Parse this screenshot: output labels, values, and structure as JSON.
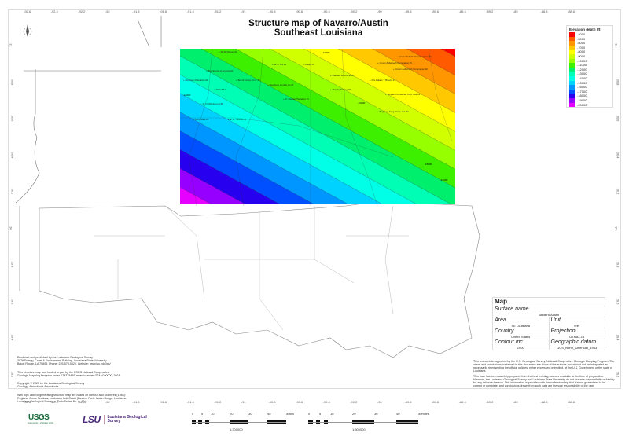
{
  "map": {
    "title_line1": "Structure map of Navarro/Austin",
    "title_line2": "Southeast Louisiana",
    "north_arrow_icon": "north-arrow-icon",
    "longitude_ticks": [
      "-92.6",
      "-92.4",
      "-92.2",
      "-92",
      "-91.8",
      "-91.6",
      "-91.4",
      "-91.2",
      "-91",
      "-90.8",
      "-90.6",
      "-90.4",
      "-90.2",
      "-90",
      "-89.8",
      "-89.6",
      "-89.4",
      "-89.2",
      "-89",
      "-88.8",
      "-88.6"
    ],
    "latitude_ticks": [
      "31",
      "30.8",
      "30.6",
      "30.4",
      "30.2",
      "30",
      "29.8",
      "29.6",
      "29.4",
      "29.2"
    ],
    "contour_labels": [
      "-10000",
      "-10000",
      "-10000",
      "-15000",
      "-15000"
    ],
    "wells": [
      "W. M. Passes #1",
      "Boy Scouts of America #1",
      "W. E. Dix #1",
      "Phillips #1",
      "Robinson Plantation #1",
      "McKell #1",
      "Bob R. Jones \"A-X\" #1",
      "Newsbury Lumber Co #1",
      "Matthew Bros et al #1",
      "Crown Zellerbach Corporation #1",
      "Crown Zellerbach Corporation #3",
      "Crown Zellerbach Corporation #2",
      "Mrs Palace T. Brooks #1",
      "Murphy Rehnee #1",
      "Weyland Consumer Corp. Fee #1",
      "R. Claudel Plantation #1",
      "M. N. Winnie et al #1",
      "Bogalusa Tung Oil Co. Inc. #1",
      "Tomo Mark #1",
      "E. A. Tuncliffe #1"
    ]
  },
  "legend": {
    "title": "Elevation depth [ft]",
    "items": [
      {
        "label": "-4000",
        "color": "#ff0000"
      },
      {
        "label": "-5000",
        "color": "#ff5a00"
      },
      {
        "label": "-6000",
        "color": "#ff9600"
      },
      {
        "label": "-7000",
        "color": "#ffc800"
      },
      {
        "label": "-8000",
        "color": "#ffff00"
      },
      {
        "label": "-9000",
        "color": "#d2ff00"
      },
      {
        "label": "-10000",
        "color": "#96ff00"
      },
      {
        "label": "-11000",
        "color": "#3cf000"
      },
      {
        "label": "-12000",
        "color": "#00f06e"
      },
      {
        "label": "-13000",
        "color": "#00ffb4"
      },
      {
        "label": "-14000",
        "color": "#00ffe6"
      },
      {
        "label": "-15000",
        "color": "#00d2ff"
      },
      {
        "label": "-16000",
        "color": "#0096ff"
      },
      {
        "label": "-17000",
        "color": "#0050ff"
      },
      {
        "label": "-18000",
        "color": "#2800f0"
      },
      {
        "label": "-19000",
        "color": "#9600ff"
      },
      {
        "label": "-20000",
        "color": "#e600ff"
      }
    ]
  },
  "info": {
    "header": "Map",
    "surface_name_label": "Surface name",
    "surface_name": "Navarro/Austin",
    "area_label": "Area",
    "area": "SE Louisiana",
    "unit_label": "Unit",
    "unit": "feet",
    "country_label": "Country",
    "country": "United States",
    "projection_label": "Projection",
    "projection": "UTM83-15",
    "contour_label": "Contour inc",
    "contour": "1000",
    "datum_label": "Geographic datum",
    "datum": "GCS_North_American_1983"
  },
  "notes_left": [
    "Produced and published by the Louisiana Geological Survey\n3079 Energy, Coast & Environment Building, Louisiana State University\nBaton Rouge, LA 70803. Phone: 225-578-5320. Website: www.lsu.edu/lgs/",
    "This structure map was funded in part by the USGS National Cooperative\nGeologic Mapping Program under STATEMAP award number G24AC00000, 2024",
    "Copyright © 2025 by the Louisiana Geological Survey\nGeology: Abrdokhola Abrdokhola",
    "Well tops used in generating structure map are based on Bebout and Gutierrez (1983):\nRegional Cross Sections, Louisiana Gulf Coast (Eastern Part). Baton Rouge, Louisiana\nLouisiana Geological Survey. v. Folio Series No. 6, 10 p."
  ],
  "notes_right": [
    "This research is supported by the U.S. Geological Survey, National Cooperative Geologic Mapping Program. The views and conclusions contained in this document are those of the authors and should not be interpreted as necessarily representing the official policies, either expressed or implied, of the U.S. Government or the state of Louisiana.",
    "This map has been carefully prepared from the best existing sources available at the time of preparation. However, the Louisiana Geological Survey and Louisiana State University do not assume responsibility or liability for any reliance thereon. This information is provided with the understanding that it is not guaranteed to be correct or complete, and conclusions drawn from such data are the sole responsibility of the user."
  ],
  "logos": {
    "usgs": "USGS",
    "usgs_tagline": "science for a changing world",
    "lsu": "LSU",
    "lgs_line1": "Louisiana Geological",
    "lgs_line2": "Survey"
  },
  "scalebars": [
    {
      "ticks": [
        "0",
        "5",
        "10",
        "20",
        "30",
        "40",
        "50km"
      ],
      "ratio": "1:300000"
    },
    {
      "ticks": [
        "0",
        "5",
        "10",
        "20",
        "30",
        "40",
        "50miles"
      ],
      "ratio": "1:300000"
    }
  ]
}
